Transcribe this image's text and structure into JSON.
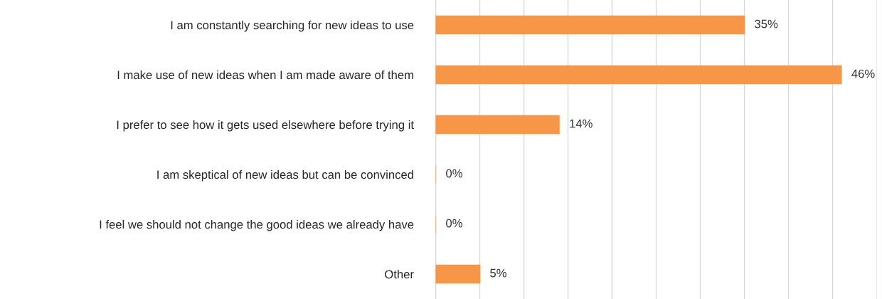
{
  "chart_data": {
    "type": "bar",
    "orientation": "horizontal",
    "categories": [
      "I am constantly searching for new ideas to use",
      "I make use of new ideas when I am made aware of them",
      "I prefer to see how it gets used elsewhere before trying it",
      "I am skeptical of new ideas but can be convinced",
      "I feel we should not change the good ideas we already have",
      "Other"
    ],
    "values": [
      35,
      46,
      14,
      0,
      0,
      5
    ],
    "value_labels": [
      "35%",
      "46%",
      "14%",
      "0%",
      "0%",
      "5%"
    ],
    "color": "#f79646",
    "xlim": [
      0,
      50
    ],
    "xticks": [
      {
        "value": 0,
        "label": null
      },
      {
        "value": 5,
        "label": null
      },
      {
        "value": 10,
        "label": null
      },
      {
        "value": 15,
        "label": null
      },
      {
        "value": 20,
        "label": null
      },
      {
        "value": 25,
        "label": null
      },
      {
        "value": 30,
        "label": null
      },
      {
        "value": 35,
        "label": null
      },
      {
        "value": 40,
        "label": null
      },
      {
        "value": 45,
        "label": null
      },
      {
        "value": 50,
        "label": null
      }
    ],
    "grid": "x",
    "tick_labels": "y",
    "legend": false
  }
}
